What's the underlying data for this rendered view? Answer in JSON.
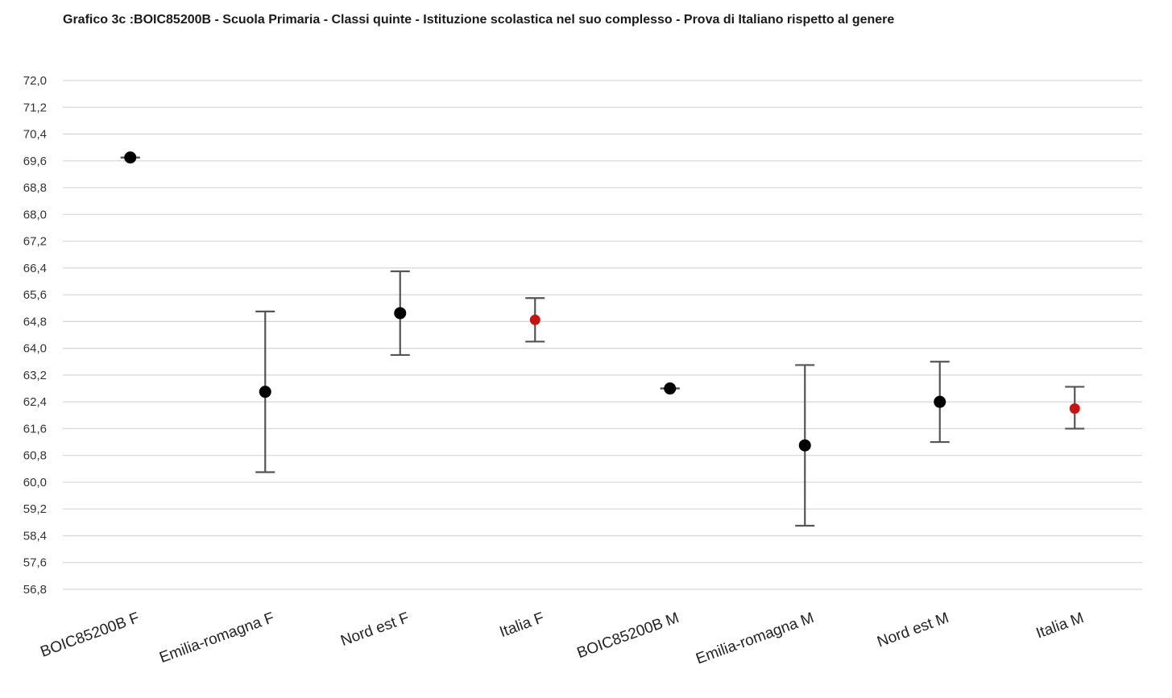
{
  "chart_data": {
    "type": "scatter",
    "title": "Grafico 3c :BOIC85200B - Scuola Primaria - Classi quinte - Istituzione scolastica nel suo complesso - Prova di Italiano rispetto al genere",
    "xlabel": "",
    "ylabel": "",
    "ylim": [
      56.8,
      72.0
    ],
    "ytick_step": 0.8,
    "grid": true,
    "legend": "none",
    "categories": [
      "BOIC85200B F",
      "Emilia-romagna F",
      "Nord est F",
      "Italia F",
      "BOIC85200B M",
      "Emilia-romagna M",
      "Nord est M",
      "Italia M"
    ],
    "series": [
      {
        "values": [
          69.7,
          62.7,
          65.05,
          64.85,
          62.8,
          61.1,
          62.4,
          62.2
        ],
        "lower": [
          69.7,
          60.3,
          63.8,
          64.2,
          62.8,
          58.7,
          61.2,
          61.6
        ],
        "upper": [
          69.7,
          65.1,
          66.3,
          65.5,
          62.8,
          63.5,
          63.6,
          62.85
        ],
        "colors": [
          "#000000",
          "#000000",
          "#000000",
          "#cc1111",
          "#000000",
          "#000000",
          "#000000",
          "#cc1111"
        ]
      }
    ]
  }
}
